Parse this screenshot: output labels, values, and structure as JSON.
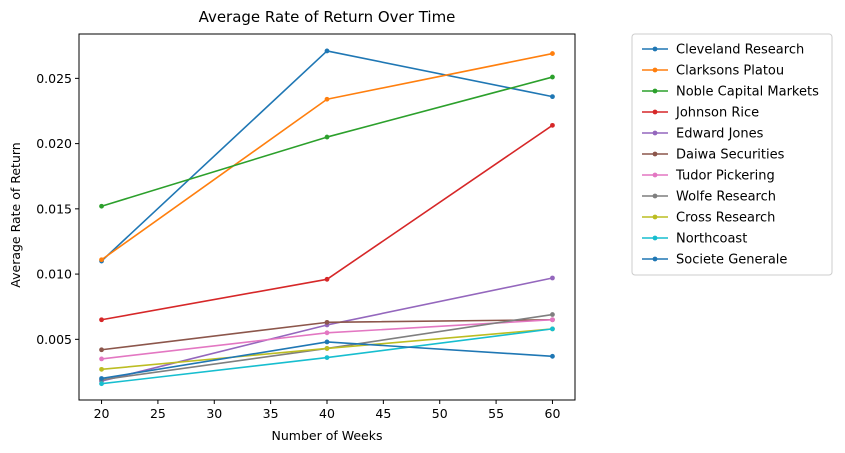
{
  "chart_data": {
    "type": "line",
    "title": "Average Rate of Return Over Time",
    "xlabel": "Number of Weeks",
    "ylabel": "Average Rate of Return",
    "x": [
      20,
      40,
      60
    ],
    "xlim": [
      18.0,
      62.0
    ],
    "ylim": [
      0.00035,
      0.0284
    ],
    "xticks": [
      20,
      25,
      30,
      35,
      40,
      45,
      50,
      55,
      60
    ],
    "yticks": [
      0.005,
      0.01,
      0.015,
      0.02,
      0.025
    ],
    "ytick_labels": [
      "0.005",
      "0.010",
      "0.015",
      "0.020",
      "0.025"
    ],
    "grid": false,
    "legend_position": "outside-right",
    "series": [
      {
        "name": "Cleveland Research",
        "color": "#1f77b4",
        "values": [
          0.011,
          0.0271,
          0.0236
        ]
      },
      {
        "name": "Clarksons Platou",
        "color": "#ff7f0e",
        "values": [
          0.0111,
          0.0234,
          0.0269
        ]
      },
      {
        "name": "Noble Capital Markets",
        "color": "#2ca02c",
        "values": [
          0.0152,
          0.0205,
          0.0251
        ]
      },
      {
        "name": "Johnson Rice",
        "color": "#d62728",
        "values": [
          0.0065,
          0.0096,
          0.0214
        ]
      },
      {
        "name": "Edward Jones",
        "color": "#9467bd",
        "values": [
          0.0018,
          0.0061,
          0.0097
        ]
      },
      {
        "name": "Daiwa Securities",
        "color": "#8c564b",
        "values": [
          0.0042,
          0.0063,
          0.0065
        ]
      },
      {
        "name": "Tudor Pickering",
        "color": "#e377c2",
        "values": [
          0.0035,
          0.0055,
          0.0065
        ]
      },
      {
        "name": "Wolfe Research",
        "color": "#7f7f7f",
        "values": [
          0.0019,
          0.0043,
          0.0069
        ]
      },
      {
        "name": "Cross Research",
        "color": "#bcbd22",
        "values": [
          0.0027,
          0.0043,
          0.0058
        ]
      },
      {
        "name": "Northcoast",
        "color": "#17becf",
        "values": [
          0.0016,
          0.0036,
          0.0058
        ]
      },
      {
        "name": "Societe Generale",
        "color": "#1f77b4",
        "values": [
          0.002,
          0.0048,
          0.0037
        ]
      }
    ]
  }
}
